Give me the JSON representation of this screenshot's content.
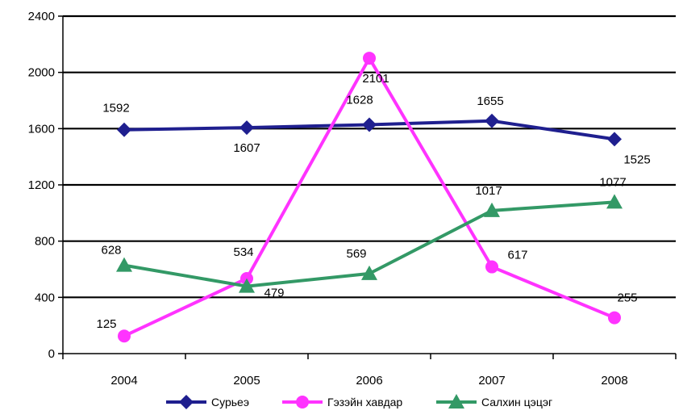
{
  "chart_data": {
    "type": "line",
    "title": "",
    "xlabel": "",
    "ylabel": "",
    "categories": [
      "2004",
      "2005",
      "2006",
      "2007",
      "2008"
    ],
    "ylim": [
      0,
      2400
    ],
    "yticks": [
      0,
      400,
      800,
      1200,
      1600,
      2000,
      2400
    ],
    "grid": true,
    "legend_position": "bottom",
    "series": [
      {
        "name": "Сурьеэ",
        "color": "#1f1f8f",
        "marker": "diamond",
        "values": [
          1592,
          1607,
          1628,
          1655,
          1525
        ],
        "labels": [
          "1592",
          "1607",
          "1628",
          "1655",
          "1525"
        ]
      },
      {
        "name": "Гэзэйн хавдар",
        "color": "#ff33ff",
        "marker": "circle",
        "values": [
          125,
          534,
          2101,
          617,
          255
        ],
        "labels": [
          "125",
          "534",
          "2101",
          "617",
          "255"
        ]
      },
      {
        "name": "Салхин цэцэг",
        "color": "#339966",
        "marker": "triangle",
        "values": [
          628,
          479,
          569,
          1017,
          1077
        ],
        "labels": [
          "628",
          "479",
          "569",
          "1017",
          "1077"
        ]
      }
    ]
  }
}
